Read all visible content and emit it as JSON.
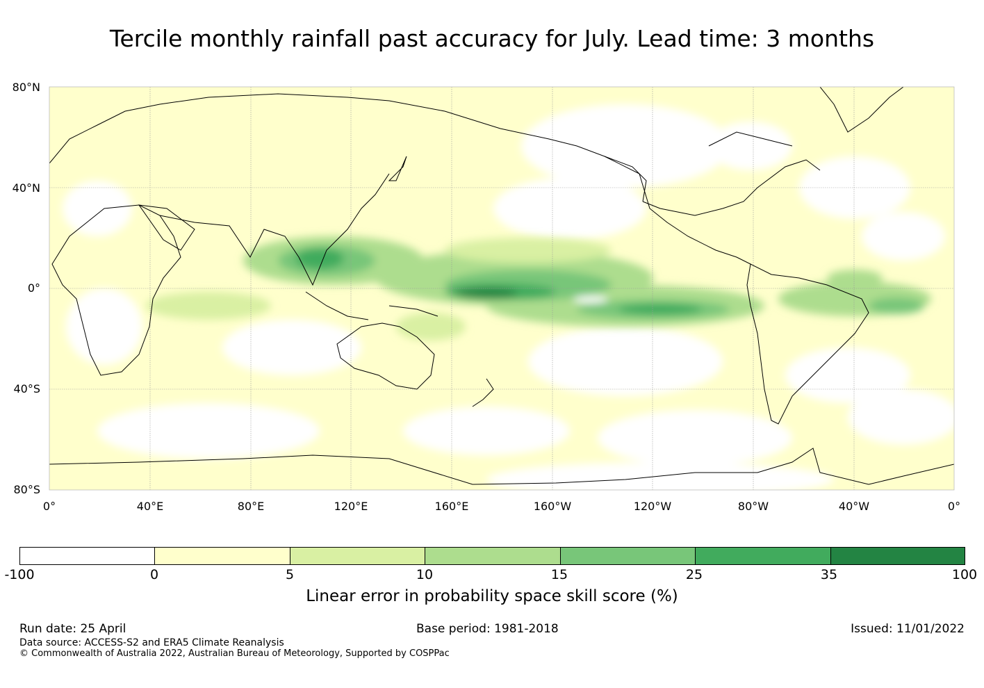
{
  "title": "Tercile monthly rainfall past accuracy for July. Lead time: 3 months",
  "map": {
    "lat_labels": [
      "80°N",
      "40°N",
      "0°",
      "40°S",
      "80°S"
    ],
    "lon_labels": [
      "0°",
      "40°E",
      "80°E",
      "120°E",
      "160°E",
      "160°W",
      "120°W",
      "80°W",
      "40°W",
      "0°"
    ],
    "lat_range": [
      -80,
      80
    ],
    "lon_range": [
      0,
      360
    ],
    "gridlines": true
  },
  "colorbar": {
    "ticks": [
      "-100",
      "0",
      "5",
      "10",
      "15",
      "25",
      "35",
      "100"
    ],
    "colors": [
      "#ffffff",
      "#ffffcc",
      "#d9f0a3",
      "#addd8e",
      "#78c679",
      "#41ab5d",
      "#238443"
    ],
    "label": "Linear error in probability space skill score (%)"
  },
  "footer": {
    "run_date": "Run date: 25 April",
    "base_period": "Base period: 1981-2018",
    "issued": "Issued: 11/01/2022",
    "data_source": "Data source: ACCESS-S2 and ERA5 Climate Reanalysis",
    "copyright": "© Commonwealth of Australia 2022, Australian Bureau of Meteorology, Supported by COSPPac"
  }
}
